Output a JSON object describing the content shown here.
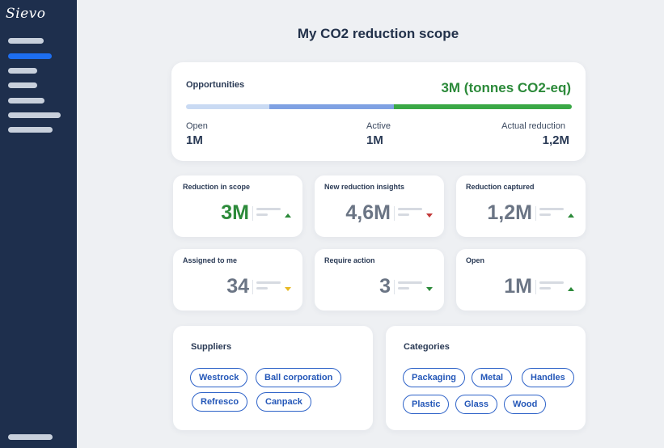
{
  "app": {
    "logo": "Sievo"
  },
  "page": {
    "title": "My CO2 reduction scope"
  },
  "opportunities": {
    "label": "Opportunities",
    "total": "3M (tonnes CO2-eq)",
    "open_label": "Open",
    "open_value": "1M",
    "active_label": "Active",
    "active_value": "1M",
    "actual_label": "Actual reduction",
    "actual_value": "1,2M"
  },
  "metrics": [
    {
      "label": "Reduction in scope",
      "value": "3M",
      "trend": "up"
    },
    {
      "label": "New reduction insights",
      "value": "4,6M",
      "trend": "down"
    },
    {
      "label": "Reduction captured",
      "value": "1,2M",
      "trend": "up"
    },
    {
      "label": "Assigned to me",
      "value": "34",
      "trend": "down"
    },
    {
      "label": "Require action",
      "value": "3",
      "trend": "down"
    },
    {
      "label": "Open",
      "value": "1M",
      "trend": "up"
    }
  ],
  "suppliers": {
    "title": "Suppliers",
    "tags": [
      "Westrock",
      "Ball corporation",
      "Refresco",
      "Canpack"
    ]
  },
  "categories": {
    "title": "Categories",
    "tags": [
      "Packaging",
      "Metal",
      "Handles",
      "Plastic",
      "Glass",
      "Wood"
    ]
  },
  "colors": {
    "sidebar": "#1e2f4d",
    "accent": "#1d6ef0",
    "positive": "#2c8a3a",
    "negative": "#c23a3a",
    "warning": "#e8b923",
    "chip": "#2d62c8"
  }
}
